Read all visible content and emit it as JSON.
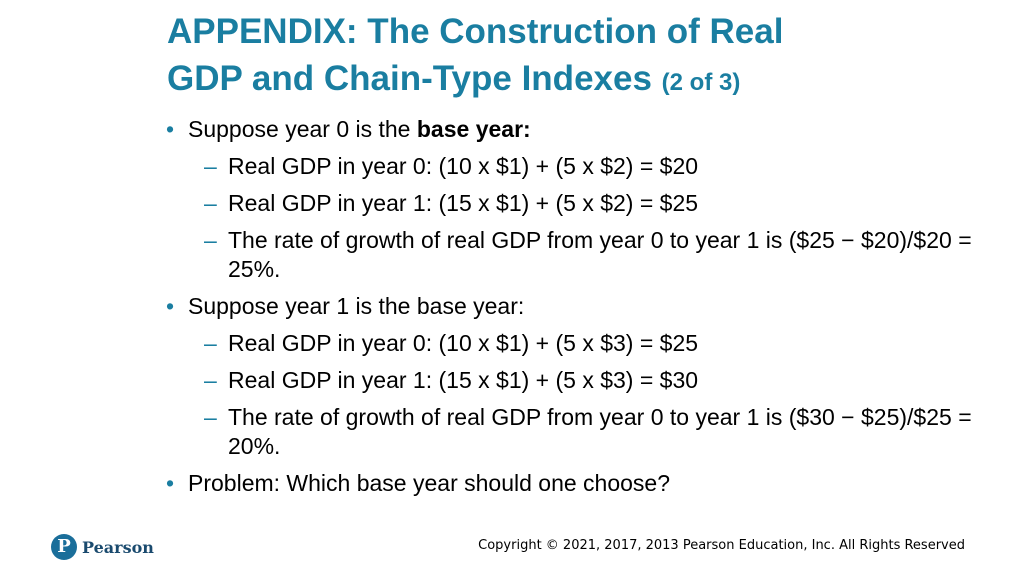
{
  "slide": {
    "title_line1": "APPENDIX: The Construction of Real",
    "title_line2": "GDP and Chain-Type Indexes",
    "title_suffix": "(2 of 3)",
    "bullets": [
      {
        "prefix": "Suppose year 0 is the ",
        "bold": "base year:",
        "subs": [
          "Real GDP in year 0: (10 x $1) + (5 x $2) = $20",
          "Real GDP in year 1: (15 x $1) + (5 x $2) = $25",
          "The rate of growth of real GDP from year 0 to year 1 is ($25 − $20)/$20 = 25%."
        ]
      },
      {
        "prefix": "Suppose year 1 is the base year:",
        "bold": "",
        "subs": [
          "Real GDP in year 0: (10 x $1) + (5 x $3) = $25",
          "Real GDP in year 1: (15 x $1) + (5 x $3) = $30",
          "The rate of growth of real GDP from year 0 to year 1 is ($30 − $25)/$25 = 20%."
        ]
      },
      {
        "prefix": "Problem: Which base year should one choose?",
        "bold": "",
        "subs": []
      }
    ]
  },
  "footer": {
    "logo_mark": "P",
    "logo_text": "Pearson",
    "copyright": "Copyright © 2021, 2017, 2013 Pearson Education, Inc. All Rights Reserved"
  },
  "colors": {
    "accent": "#1a7ea1",
    "logo": "#1a6e9a"
  },
  "icons": {
    "bullet": "•",
    "dash": "–"
  }
}
